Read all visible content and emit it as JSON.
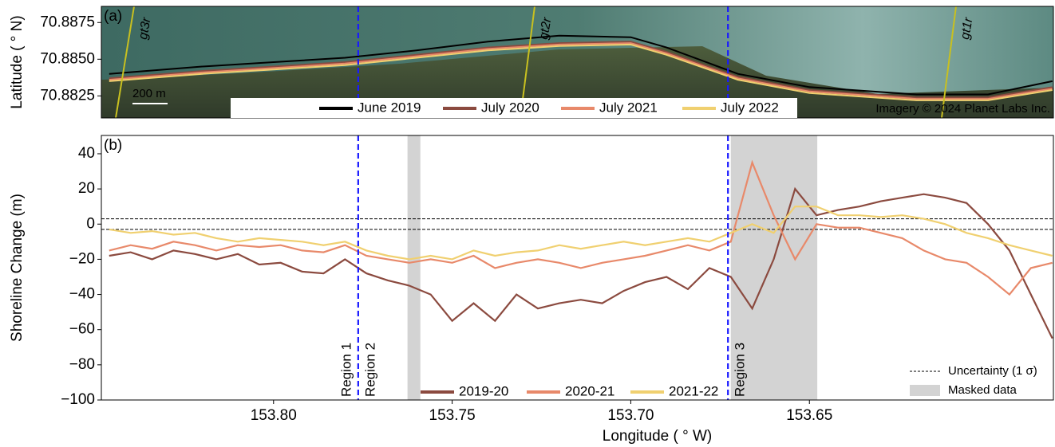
{
  "chart_data": [
    {
      "type": "line",
      "panel_label": "(a)",
      "ylabel": "Latitude ( ° N)",
      "xlim": [
        153.8482,
        153.5817
      ],
      "ylim": [
        70.881,
        70.8886
      ],
      "yticks": [
        70.8825,
        {
          "value": 70.885,
          "label": "70.8850"
        },
        70.8875
      ],
      "x": [
        153.846,
        153.82,
        153.8,
        153.78,
        153.76,
        153.74,
        153.72,
        153.7,
        153.69,
        153.67,
        153.65,
        153.62,
        153.6,
        153.582
      ],
      "series": [
        {
          "name": "June 2019",
          "color": "#000000",
          "values": [
            70.884,
            70.8845,
            70.8848,
            70.8851,
            70.8856,
            70.8862,
            70.8866,
            70.8865,
            70.8858,
            70.884,
            70.8831,
            70.8826,
            70.8826,
            70.8835
          ]
        },
        {
          "name": "July 2020",
          "color": "#8b4a3f",
          "values": [
            70.8837,
            70.8842,
            70.8845,
            70.8848,
            70.8853,
            70.8858,
            70.8861,
            70.8862,
            70.8855,
            70.8838,
            70.8829,
            70.8824,
            70.8824,
            70.8831
          ]
        },
        {
          "name": "July 2021",
          "color": "#e8896a",
          "values": [
            70.8836,
            70.8841,
            70.8844,
            70.8847,
            70.8852,
            70.8857,
            70.886,
            70.8861,
            70.8854,
            70.8837,
            70.8828,
            70.8823,
            70.8823,
            70.883
          ]
        },
        {
          "name": "July 2022",
          "color": "#f0d070",
          "values": [
            70.8835,
            70.884,
            70.8843,
            70.8846,
            70.8851,
            70.8856,
            70.8859,
            70.886,
            70.8853,
            70.8836,
            70.8827,
            70.8822,
            70.8822,
            70.8829
          ]
        }
      ],
      "region_lines": [
        153.7763,
        153.6728
      ],
      "ground_tracks": [
        "gt3r",
        "gt2r",
        "gt1r"
      ],
      "scale_bar": "200 m",
      "credit": "Imagery © 2024 Planet Labs Inc."
    },
    {
      "type": "line",
      "panel_label": "(b)",
      "xlabel": "Longitude ( ° W)",
      "ylabel": "Shoreline Change (m)",
      "xlim": [
        153.8482,
        153.5817
      ],
      "ylim": [
        -100,
        50.4
      ],
      "xticks": [
        {
          "value": 153.8,
          "label": "153.80"
        },
        153.75,
        {
          "value": 153.7,
          "label": "153.70"
        },
        153.65
      ],
      "yticks": [
        {
          "value": -100,
          "label": "−100"
        },
        {
          "value": -80,
          "label": "−80"
        },
        {
          "value": -60,
          "label": "−60"
        },
        {
          "value": -40,
          "label": "−40"
        },
        {
          "value": -20,
          "label": "−20"
        },
        0,
        20,
        40
      ],
      "x": [
        153.846,
        153.84,
        153.834,
        153.828,
        153.822,
        153.816,
        153.81,
        153.804,
        153.798,
        153.792,
        153.786,
        153.78,
        153.774,
        153.768,
        153.762,
        153.756,
        153.75,
        153.744,
        153.738,
        153.732,
        153.726,
        153.72,
        153.714,
        153.708,
        153.702,
        153.696,
        153.69,
        153.684,
        153.678,
        153.672,
        153.666,
        153.66,
        153.654,
        153.648,
        153.642,
        153.636,
        153.63,
        153.624,
        153.618,
        153.612,
        153.606,
        153.6,
        153.594,
        153.588,
        153.582
      ],
      "series": [
        {
          "name": "2019-20",
          "color": "#8b4a3f",
          "values": [
            -18,
            -16,
            -20,
            -15,
            -17,
            -20,
            -17,
            -23,
            -22,
            -27,
            -28,
            -20,
            -28,
            -32,
            -35,
            -40,
            -55,
            -45,
            -55,
            -40,
            -48,
            -45,
            -43,
            -45,
            -38,
            -33,
            -30,
            -37,
            -25,
            -30,
            -48,
            -20,
            20,
            5,
            8,
            10,
            13,
            15,
            17,
            15,
            12,
            0,
            -15,
            -40,
            -65
          ]
        },
        {
          "name": "2020-21",
          "color": "#e8896a",
          "values": [
            -15,
            -12,
            -14,
            -10,
            -12,
            -15,
            -12,
            -13,
            -12,
            -15,
            -16,
            -12,
            -18,
            -20,
            -22,
            -20,
            -22,
            -18,
            -25,
            -22,
            -20,
            -22,
            -25,
            -22,
            -20,
            -18,
            -15,
            -12,
            -15,
            -10,
            35,
            5,
            -20,
            0,
            -2,
            -2,
            -5,
            -8,
            -15,
            -20,
            -22,
            -30,
            -40,
            -25,
            -22
          ]
        },
        {
          "name": "2021-22",
          "color": "#f0d070",
          "values": [
            -3,
            -5,
            -4,
            -6,
            -5,
            -8,
            -10,
            -8,
            -9,
            -10,
            -12,
            -10,
            -15,
            -18,
            -20,
            -18,
            -20,
            -15,
            -18,
            -16,
            -15,
            -12,
            -14,
            -12,
            -10,
            -12,
            -10,
            -8,
            -10,
            -5,
            0,
            -5,
            10,
            10,
            5,
            5,
            4,
            5,
            3,
            0,
            -5,
            -8,
            -12,
            -15,
            -18
          ]
        }
      ],
      "uncertainty_lines": [
        3,
        -3
      ],
      "masked_ranges": [
        [
          153.7625,
          153.7589
        ],
        [
          153.672,
          153.6478
        ]
      ],
      "region_lines": [
        153.7763,
        153.6728
      ],
      "region_labels": [
        "Region 1",
        "Region 2",
        "Region 3"
      ],
      "uncertainty_label": "Uncertainty (1 σ)",
      "masked_label": "Masked data"
    }
  ]
}
